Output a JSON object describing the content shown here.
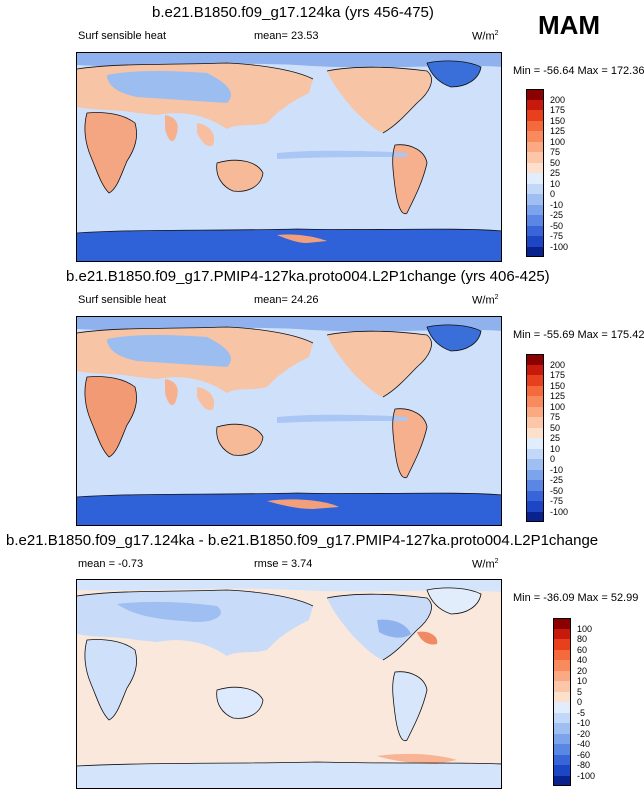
{
  "season": "MAM",
  "panels": [
    {
      "title": "b.e21.B1850.f09_g17.124ka (yrs 456-475)",
      "left_label": "Surf sensible heat",
      "center_label": "mean=  23.53",
      "units": "W/m",
      "units_sup": "2",
      "minmax": "Min = -56.64 Max = 172.36",
      "colorbar_ticks": [
        "200",
        "175",
        "150",
        "125",
        "100",
        "75",
        "50",
        "25",
        "10",
        "0",
        "-10",
        "-25",
        "-50",
        "-75",
        "-100"
      ],
      "colorbar_colors": [
        "#8b0000",
        "#c81a0c",
        "#e8401c",
        "#f46a3c",
        "#f88a5e",
        "#fba982",
        "#fcc7a8",
        "#fde0cc",
        "#e2edfc",
        "#c2d8f8",
        "#9fbff2",
        "#7ba4ec",
        "#5a86e4",
        "#3866d8",
        "#1c46c4",
        "#0a228e"
      ]
    },
    {
      "title": "b.e21.B1850.f09_g17.PMIP4-127ka.proto004.L2P1change (yrs 406-425)",
      "left_label": "Surf sensible heat",
      "center_label": "mean=  24.26",
      "units": "W/m",
      "units_sup": "2",
      "minmax": "Min = -55.69 Max = 175.42",
      "colorbar_ticks": [
        "200",
        "175",
        "150",
        "125",
        "100",
        "75",
        "50",
        "25",
        "10",
        "0",
        "-10",
        "-25",
        "-50",
        "-75",
        "-100"
      ],
      "colorbar_colors": [
        "#8b0000",
        "#c81a0c",
        "#e8401c",
        "#f46a3c",
        "#f88a5e",
        "#fba982",
        "#fcc7a8",
        "#fde0cc",
        "#e2edfc",
        "#c2d8f8",
        "#9fbff2",
        "#7ba4ec",
        "#5a86e4",
        "#3866d8",
        "#1c46c4",
        "#0a228e"
      ]
    },
    {
      "title": "b.e21.B1850.f09_g17.124ka - b.e21.B1850.f09_g17.PMIP4-127ka.proto004.L2P1change",
      "left_label": "mean =  -0.73",
      "center_label": "rmse =   3.74",
      "units": "W/m",
      "units_sup": "2",
      "minmax": "Min = -36.09 Max =  52.99",
      "colorbar_ticks": [
        "100",
        "80",
        "60",
        "40",
        "20",
        "10",
        "5",
        "0",
        "-5",
        "-10",
        "-20",
        "-40",
        "-60",
        "-80",
        "-100"
      ],
      "colorbar_colors": [
        "#8b0000",
        "#c81a0c",
        "#e8401c",
        "#f46a3c",
        "#f88a5e",
        "#fba982",
        "#fcc7a8",
        "#fde0cc",
        "#e2edfc",
        "#c2d8f8",
        "#9fbff2",
        "#7ba4ec",
        "#5a86e4",
        "#3866d8",
        "#1c46c4",
        "#0a228e"
      ]
    }
  ]
}
